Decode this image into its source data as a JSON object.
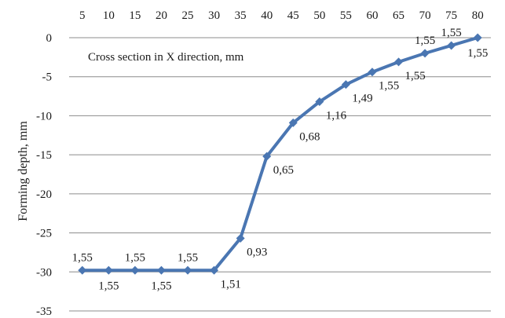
{
  "chart_data": {
    "type": "line",
    "title": "",
    "xlabel": "",
    "ylabel": "Forming depth, mm",
    "annotation": "Cross section in X direction, mm",
    "x_axis_position": "top",
    "x": [
      5,
      10,
      15,
      20,
      25,
      30,
      35,
      40,
      45,
      50,
      55,
      60,
      65,
      70,
      75,
      80
    ],
    "series": [
      {
        "name": "",
        "color": "#4a76b2",
        "values": [
          -29.8,
          -29.8,
          -29.8,
          -29.8,
          -29.8,
          -29.8,
          -25.7,
          -15.2,
          -10.9,
          -8.2,
          -6.0,
          -4.4,
          -3.1,
          -2.0,
          -1.0,
          0.0
        ],
        "labels": [
          "1,55",
          "1,55",
          "1,55",
          "1,55",
          "1,55",
          "1,51",
          "0,93",
          "0,65",
          "0,68",
          "1,16",
          "1,49",
          "1,55",
          "1,55",
          "1,55",
          "1,55",
          "1,55"
        ],
        "label_positions": [
          "above",
          "below",
          "above",
          "below",
          "above",
          "below-right",
          "below-right",
          "below-right",
          "below-right",
          "below-right",
          "below-right",
          "below-right",
          "below-right",
          "above",
          "above",
          "below"
        ]
      }
    ],
    "ylim": [
      -35,
      0
    ],
    "yticks": [
      0,
      -5,
      -10,
      -15,
      -20,
      -25,
      -30,
      -35
    ],
    "grid": true,
    "legend": "none"
  }
}
